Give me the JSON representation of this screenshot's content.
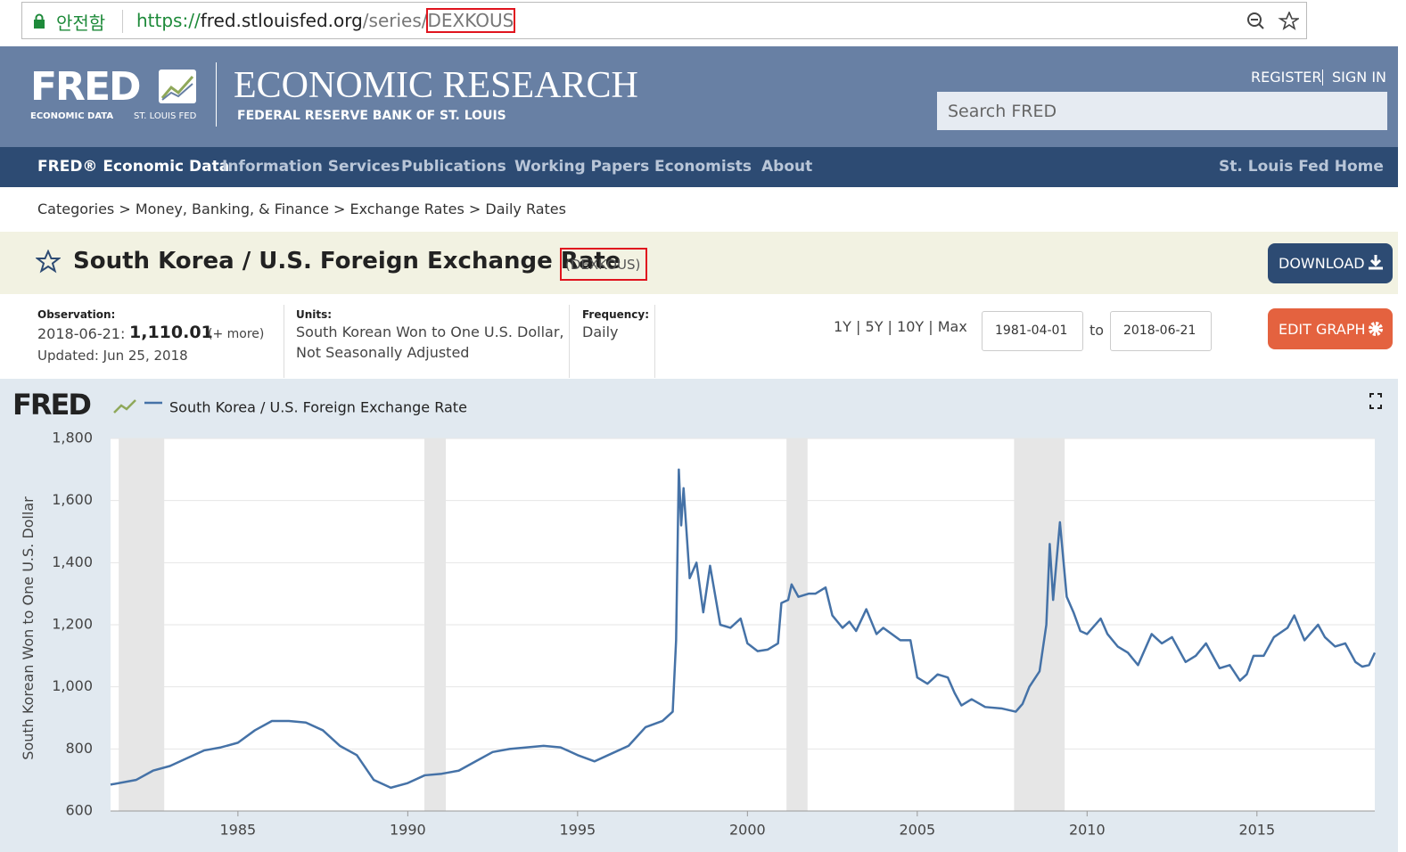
{
  "browser": {
    "security": "안전함",
    "url": [
      "https://",
      "fred.stlouisfed.org",
      "/series/",
      "DEXKOUS"
    ]
  },
  "header": {
    "logo": "FRED",
    "logo_sub": [
      "ECONOMIC DATA",
      "ST. LOUIS FED"
    ],
    "title": "ECONOMIC RESEARCH",
    "subtitle": "FEDERAL RESERVE BANK OF ST. LOUIS",
    "links": [
      "REGISTER",
      "SIGN IN"
    ],
    "search": "Search FRED"
  },
  "nav": {
    "items": [
      "FRED® Economic Data",
      "Information Services",
      "Publications",
      "Working Papers",
      "Economists",
      "About"
    ],
    "right": "St. Louis Fed Home"
  },
  "breadcrumb": [
    "Categories",
    "Money, Banking, & Finance",
    "Exchange Rates",
    "Daily Rates"
  ],
  "series": {
    "title": "South Korea / U.S. Foreign Exchange Rate",
    "id": "(DEXKOUS)",
    "download": "DOWNLOAD",
    "edit": "EDIT GRAPH"
  },
  "meta": {
    "observation_label": "Observation:",
    "observation_date": "2018-06-21:",
    "observation_value": "1,110.01",
    "more": "(+ more)",
    "updated": "Updated: Jun 25, 2018",
    "units_label": "Units:",
    "units": [
      "South Korean Won to One U.S. Dollar,",
      "Not Seasonally Adjusted"
    ],
    "frequency_label": "Frequency:",
    "frequency": "Daily",
    "ranges": [
      "1Y",
      "5Y",
      "10Y",
      "Max"
    ],
    "start": "1981-04-01",
    "to": "to",
    "end": "2018-06-21"
  },
  "chart_data": {
    "type": "line",
    "logo": "FRED",
    "y_label": "South Korean Won to One U.S. Dollar",
    "x": [
      1981.25,
      1982,
      1982.5,
      1983,
      1983.5,
      1984,
      1984.5,
      1985,
      1985.5,
      1986,
      1986.5,
      1987,
      1987.5,
      1988,
      1988.5,
      1989,
      1989.5,
      1990,
      1990.5,
      1991,
      1991.5,
      1992,
      1992.5,
      1993,
      1993.5,
      1994,
      1994.5,
      1995,
      1995.5,
      1996,
      1996.5,
      1997,
      1997.5,
      1997.8,
      1997.9,
      1997.98,
      1998.05,
      1998.12,
      1998.3,
      1998.5,
      1998.7,
      1998.9,
      1999.2,
      1999.5,
      1999.8,
      2000,
      2000.3,
      2000.6,
      2000.9,
      2001,
      2001.2,
      2001.3,
      2001.5,
      2001.8,
      2002,
      2002.3,
      2002.5,
      2002.8,
      2003,
      2003.2,
      2003.5,
      2003.8,
      2004,
      2004.5,
      2004.8,
      2005,
      2005.3,
      2005.6,
      2005.9,
      2006.1,
      2006.3,
      2006.6,
      2007,
      2007.5,
      2007.9,
      2008.1,
      2008.3,
      2008.6,
      2008.8,
      2008.9,
      2009,
      2009.2,
      2009.4,
      2009.6,
      2009.8,
      2010,
      2010.4,
      2010.6,
      2010.9,
      2011.2,
      2011.5,
      2011.9,
      2012.2,
      2012.5,
      2012.9,
      2013.2,
      2013.5,
      2013.9,
      2014.2,
      2014.5,
      2014.7,
      2014.9,
      2015.2,
      2015.5,
      2015.9,
      2016.1,
      2016.4,
      2016.8,
      2017,
      2017.3,
      2017.6,
      2017.9,
      2018.1,
      2018.3,
      2018.47
    ],
    "series": [
      {
        "name": "South Korea / U.S. Foreign Exchange Rate",
        "color": "#4572a7",
        "values": [
          685,
          700,
          730,
          745,
          770,
          795,
          805,
          820,
          860,
          890,
          890,
          885,
          860,
          810,
          780,
          700,
          675,
          690,
          715,
          720,
          730,
          760,
          790,
          800,
          805,
          810,
          805,
          780,
          760,
          785,
          810,
          870,
          890,
          920,
          1150,
          1700,
          1520,
          1640,
          1350,
          1400,
          1240,
          1390,
          1200,
          1190,
          1220,
          1140,
          1115,
          1120,
          1140,
          1270,
          1280,
          1330,
          1290,
          1300,
          1300,
          1320,
          1230,
          1190,
          1210,
          1180,
          1250,
          1170,
          1190,
          1150,
          1150,
          1030,
          1010,
          1040,
          1030,
          980,
          940,
          960,
          935,
          930,
          920,
          945,
          1000,
          1050,
          1200,
          1460,
          1280,
          1530,
          1290,
          1240,
          1180,
          1170,
          1220,
          1170,
          1130,
          1110,
          1070,
          1170,
          1140,
          1160,
          1080,
          1100,
          1140,
          1060,
          1070,
          1020,
          1040,
          1100,
          1100,
          1160,
          1190,
          1230,
          1150,
          1200,
          1160,
          1130,
          1140,
          1080,
          1065,
          1070,
          1110
        ]
      }
    ],
    "shading": [
      [
        1981.49,
        1982.83
      ],
      [
        1990.49,
        1991.12
      ],
      [
        2001.15,
        2001.77
      ],
      [
        2007.85,
        2009.34
      ]
    ],
    "xlim": [
      1981.25,
      2018.47
    ],
    "xticks": [
      1985,
      1990,
      1995,
      2000,
      2005,
      2010,
      2015
    ],
    "ylim": [
      600,
      1800
    ],
    "yticks": [
      600,
      800,
      {
        "value": 1000,
        "label": "1,000"
      },
      {
        "value": 1200,
        "label": "1,200"
      },
      {
        "value": 1400,
        "label": "1,400"
      },
      {
        "value": 1600,
        "label": "1,600"
      },
      {
        "value": 1800,
        "label": "1,800"
      }
    ],
    "grid": true
  }
}
